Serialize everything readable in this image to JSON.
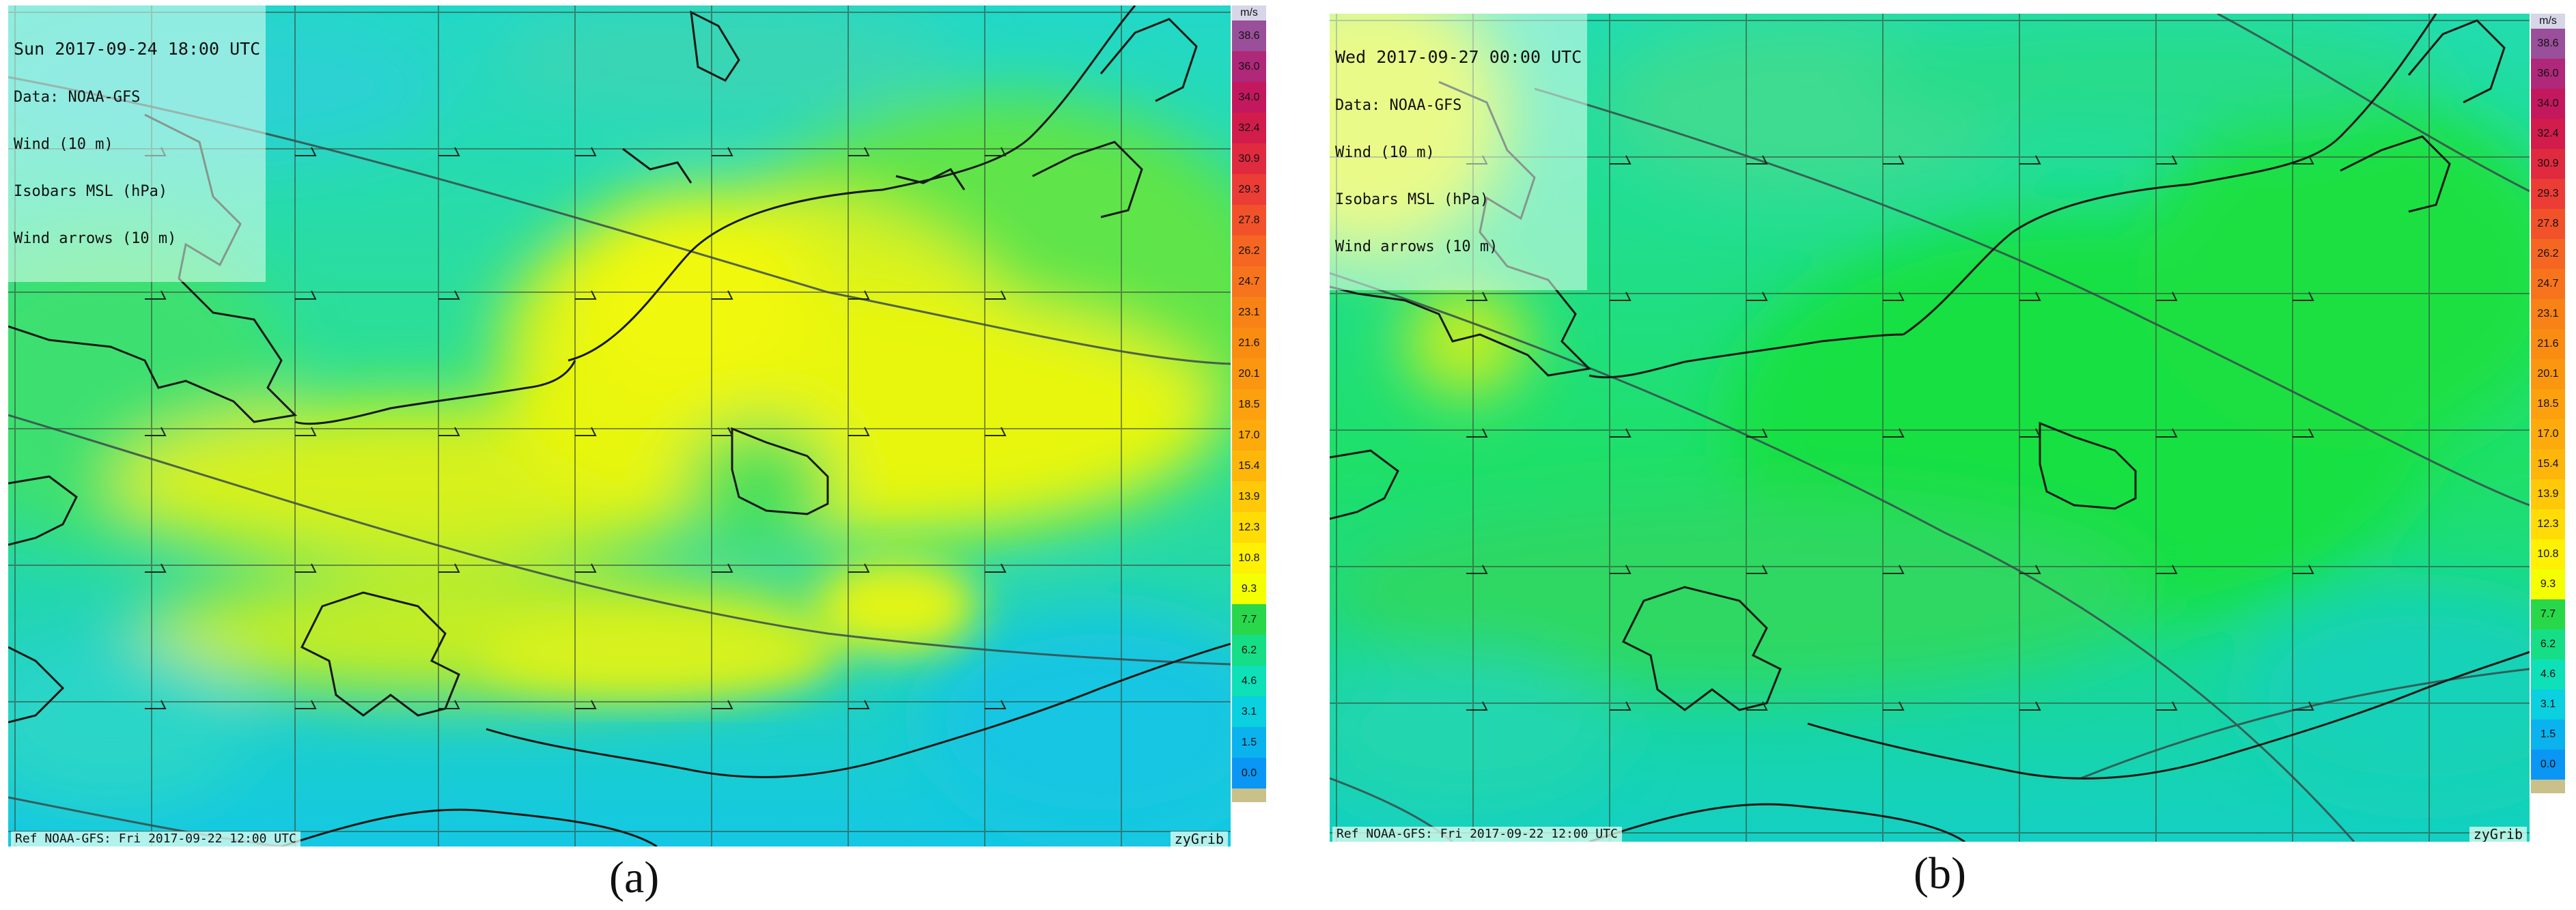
{
  "panels": [
    {
      "id": "a",
      "date_label": "Sun 2017-09-24 18:00 UTC",
      "lines": [
        "Data: NOAA-GFS",
        "Wind (10 m)",
        "Isobars MSL (hPa)",
        "Wind arrows (10 m)"
      ],
      "ref_label": "Ref NOAA-GFS: Fri 2017-09-22 12:00 UTC",
      "brand": "zyGrib",
      "caption": "(a)",
      "field": "yellow"
    },
    {
      "id": "b",
      "date_label": "Wed 2017-09-27 00:00 UTC",
      "lines": [
        "Data: NOAA-GFS",
        "Wind (10 m)",
        "Isobars MSL (hPa)",
        "Wind arrows (10 m)"
      ],
      "ref_label": "Ref NOAA-GFS: Fri 2017-09-22 12:00 UTC",
      "brand": "zyGrib",
      "caption": "(b)",
      "field": "green"
    }
  ],
  "legend": {
    "unit": "m/s",
    "entries": [
      {
        "label": "38.6",
        "color": "#9a4f9a"
      },
      {
        "label": "36.0",
        "color": "#b0287a"
      },
      {
        "label": "34.0",
        "color": "#c4185e"
      },
      {
        "label": "32.4",
        "color": "#d21c4c"
      },
      {
        "label": "30.9",
        "color": "#e02a40"
      },
      {
        "label": "29.3",
        "color": "#ec3c36"
      },
      {
        "label": "27.8",
        "color": "#f2522a"
      },
      {
        "label": "26.2",
        "color": "#f56622"
      },
      {
        "label": "24.7",
        "color": "#f7741c"
      },
      {
        "label": "23.1",
        "color": "#f88216"
      },
      {
        "label": "21.6",
        "color": "#fa8c12"
      },
      {
        "label": "20.1",
        "color": "#fb9610"
      },
      {
        "label": "18.5",
        "color": "#fca00e"
      },
      {
        "label": "17.0",
        "color": "#fdaa0c"
      },
      {
        "label": "15.4",
        "color": "#feb60a"
      },
      {
        "label": "13.9",
        "color": "#ffc808"
      },
      {
        "label": "12.3",
        "color": "#ffdc06"
      },
      {
        "label": "10.8",
        "color": "#fff004"
      },
      {
        "label": "9.3",
        "color": "#f4ff02"
      },
      {
        "label": "7.7",
        "color": "#28d84a"
      },
      {
        "label": "6.2",
        "color": "#16de86"
      },
      {
        "label": "4.6",
        "color": "#0ee0b8"
      },
      {
        "label": "3.1",
        "color": "#0ad0e0"
      },
      {
        "label": "1.5",
        "color": "#0ab2ee"
      },
      {
        "label": "0.0",
        "color": "#0a96f4"
      }
    ]
  }
}
